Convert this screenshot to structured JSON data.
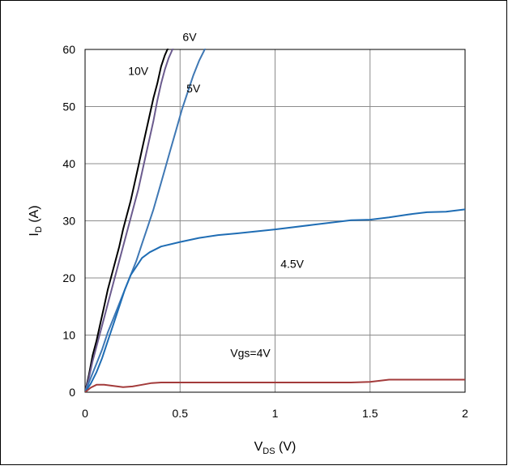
{
  "chart_data": {
    "type": "line",
    "title": "",
    "xlabel": {
      "main": "V",
      "sub": "DS",
      "unit": " (V)"
    },
    "ylabel": {
      "main": "I",
      "sub": "D",
      "unit": " (A)"
    },
    "xlim": [
      0,
      2
    ],
    "ylim": [
      0,
      60
    ],
    "xticks": [
      0,
      0.5,
      1,
      1.5,
      2
    ],
    "xtick_labels": [
      "0",
      "0.5",
      "1",
      "1.5",
      "2"
    ],
    "yticks": [
      0,
      10,
      20,
      30,
      40,
      50,
      60
    ],
    "ytick_labels": [
      "0",
      "10",
      "20",
      "30",
      "40",
      "50",
      "60"
    ],
    "grid": true,
    "series": [
      {
        "name": "10V",
        "color": "#000000",
        "label_at": [
          0.28,
          55.5
        ],
        "x": [
          0,
          0.02,
          0.04,
          0.06,
          0.08,
          0.1,
          0.12,
          0.14,
          0.16,
          0.18,
          0.2,
          0.22,
          0.24,
          0.26,
          0.28,
          0.3,
          0.32,
          0.34,
          0.36,
          0.38,
          0.4,
          0.42,
          0.44,
          0.45
        ],
        "y": [
          0,
          3,
          6.5,
          9,
          12,
          15,
          18,
          20.5,
          23,
          25.5,
          28.5,
          31,
          33.5,
          36.5,
          39.5,
          42.5,
          45.5,
          48.5,
          51.5,
          54,
          57,
          59,
          60.5,
          61
        ]
      },
      {
        "name": "6V",
        "color": "#6b5b8e",
        "label_at": [
          0.55,
          61.5
        ],
        "x": [
          0,
          0.02,
          0.04,
          0.06,
          0.08,
          0.1,
          0.12,
          0.14,
          0.16,
          0.18,
          0.2,
          0.22,
          0.24,
          0.26,
          0.28,
          0.3,
          0.32,
          0.34,
          0.36,
          0.38,
          0.4,
          0.42,
          0.44,
          0.46,
          0.47
        ],
        "y": [
          0,
          2.5,
          5.5,
          8,
          10.5,
          13,
          15.5,
          18,
          20.5,
          23,
          25.5,
          28,
          30.5,
          33,
          35.5,
          38.5,
          41.5,
          44.5,
          47.5,
          51,
          54,
          56.5,
          58.5,
          60,
          61
        ]
      },
      {
        "name": "5V",
        "color": "#3f78b4",
        "label_at": [
          0.57,
          52.5
        ],
        "x": [
          0,
          0.03,
          0.06,
          0.09,
          0.12,
          0.15,
          0.18,
          0.21,
          0.24,
          0.27,
          0.3,
          0.33,
          0.36,
          0.39,
          0.42,
          0.45,
          0.48,
          0.51,
          0.54,
          0.57,
          0.6,
          0.63,
          0.64
        ],
        "y": [
          0,
          2.5,
          5,
          7.5,
          10.5,
          13,
          15.5,
          18,
          20.5,
          23,
          26,
          29,
          32,
          35.5,
          39,
          42.5,
          46,
          49.5,
          52.5,
          55.5,
          58,
          60,
          61
        ]
      },
      {
        "name": "4.5V",
        "color": "#1f6db4",
        "label_at": [
          1.09,
          21.8
        ],
        "x": [
          0,
          0.03,
          0.06,
          0.09,
          0.12,
          0.15,
          0.18,
          0.21,
          0.24,
          0.27,
          0.3,
          0.34,
          0.4,
          0.5,
          0.6,
          0.7,
          0.8,
          1.0,
          1.2,
          1.4,
          1.5,
          1.6,
          1.7,
          1.8,
          1.9,
          2.0
        ],
        "y": [
          0,
          1.5,
          3.5,
          6,
          9,
          12,
          15,
          18,
          20.5,
          22,
          23.5,
          24.5,
          25.5,
          26.3,
          27,
          27.5,
          27.8,
          28.5,
          29.3,
          30.1,
          30.2,
          30.6,
          31.1,
          31.5,
          31.6,
          32
        ]
      },
      {
        "name": "Vgs=4V",
        "color": "#a33b3b",
        "label_at": [
          0.87,
          6.2
        ],
        "x": [
          0,
          0.03,
          0.06,
          0.1,
          0.15,
          0.2,
          0.25,
          0.3,
          0.35,
          0.4,
          0.5,
          0.7,
          1.0,
          1.2,
          1.4,
          1.5,
          1.55,
          1.6,
          1.7,
          1.8,
          2.0
        ],
        "y": [
          0,
          0.8,
          1.3,
          1.3,
          1.1,
          0.9,
          1.0,
          1.3,
          1.6,
          1.7,
          1.7,
          1.7,
          1.7,
          1.7,
          1.7,
          1.8,
          2.0,
          2.2,
          2.2,
          2.2,
          2.2
        ]
      }
    ]
  }
}
